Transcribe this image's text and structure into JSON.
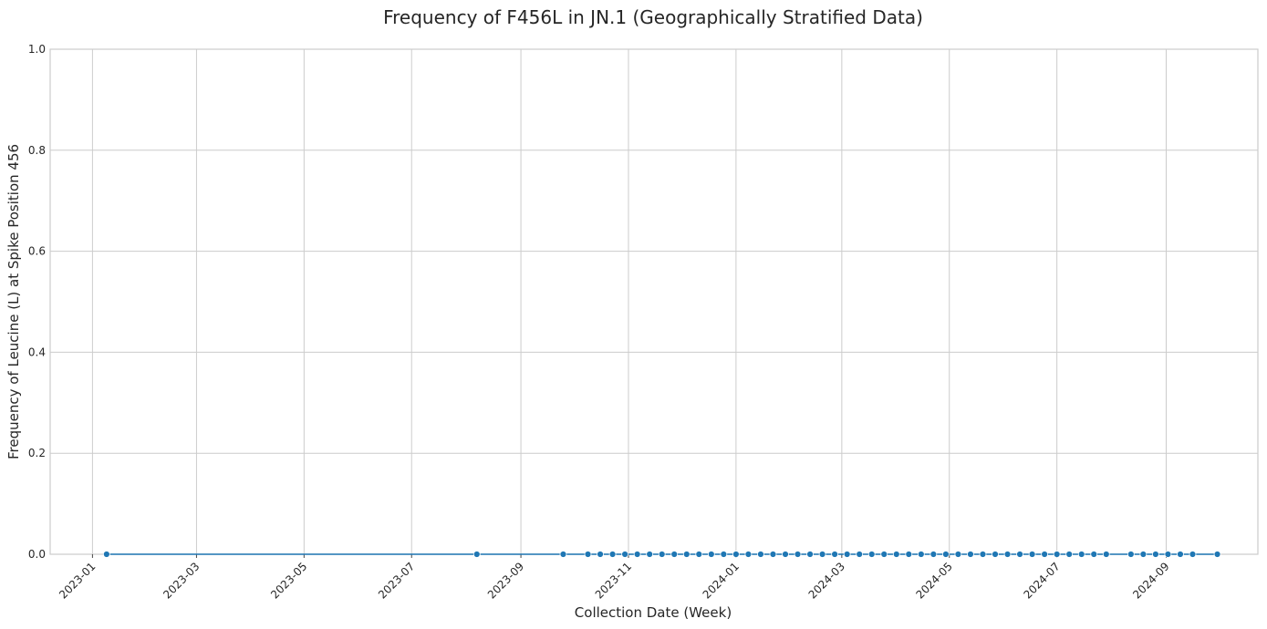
{
  "chart_data": {
    "type": "line",
    "title": "Frequency of F456L in JN.1 (Geographically Stratified Data)",
    "xlabel": "Collection Date (Week)",
    "ylabel": "Frequency of Leucine (L) at Spike Position 456",
    "xlim": [
      "2022-12-08",
      "2024-10-23"
    ],
    "ylim": [
      0,
      1.0
    ],
    "x_tick_labels": [
      "2023-01",
      "2023-03",
      "2023-05",
      "2023-07",
      "2023-09",
      "2023-11",
      "2024-01",
      "2024-03",
      "2024-05",
      "2024-07",
      "2024-09"
    ],
    "x_tick_dates": [
      "2023-01-01",
      "2023-03-01",
      "2023-05-01",
      "2023-07-01",
      "2023-09-01",
      "2023-11-01",
      "2024-01-01",
      "2024-03-01",
      "2024-05-01",
      "2024-07-01",
      "2024-09-01"
    ],
    "y_ticks": [
      0.0,
      0.2,
      0.4,
      0.6,
      0.8,
      1.0
    ],
    "y_tick_labels": [
      "0.0",
      "0.2",
      "0.4",
      "0.6",
      "0.8",
      "1.0"
    ],
    "grid": true,
    "series": [
      {
        "color": "#1f77b4",
        "marker": "circle",
        "x": [
          "2023-01-09",
          "2023-08-07",
          "2023-09-25",
          "2023-10-09",
          "2023-10-16",
          "2023-10-23",
          "2023-10-30",
          "2023-11-06",
          "2023-11-13",
          "2023-11-20",
          "2023-11-27",
          "2023-12-04",
          "2023-12-11",
          "2023-12-18",
          "2023-12-25",
          "2024-01-01",
          "2024-01-08",
          "2024-01-15",
          "2024-01-22",
          "2024-01-29",
          "2024-02-05",
          "2024-02-12",
          "2024-02-19",
          "2024-02-26",
          "2024-03-04",
          "2024-03-11",
          "2024-03-18",
          "2024-03-25",
          "2024-04-01",
          "2024-04-08",
          "2024-04-15",
          "2024-04-22",
          "2024-04-29",
          "2024-05-06",
          "2024-05-13",
          "2024-05-20",
          "2024-05-27",
          "2024-06-03",
          "2024-06-10",
          "2024-06-17",
          "2024-06-24",
          "2024-07-01",
          "2024-07-08",
          "2024-07-15",
          "2024-07-22",
          "2024-07-29",
          "2024-08-12",
          "2024-08-19",
          "2024-08-26",
          "2024-09-02",
          "2024-09-09",
          "2024-09-16",
          "2024-09-30"
        ],
        "y": [
          0,
          0,
          0,
          0,
          0,
          0,
          0,
          0,
          0,
          0,
          0,
          0,
          0,
          0,
          0,
          0,
          0,
          0,
          0,
          0,
          0,
          0,
          0,
          0,
          0,
          0,
          0,
          0,
          0,
          0,
          0,
          0,
          0,
          0,
          0,
          0,
          0,
          0,
          0,
          0,
          0,
          0,
          0,
          0,
          0,
          0,
          0,
          0,
          0,
          0,
          0,
          0,
          0
        ]
      }
    ]
  }
}
